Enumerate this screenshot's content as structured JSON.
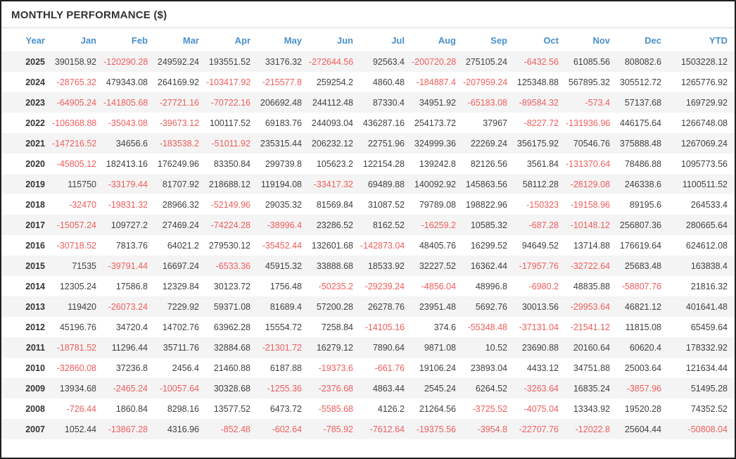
{
  "title": "MONTHLY PERFORMANCE ($)",
  "colors": {
    "header_text": "#4a90ca",
    "negative_value": "#f05c5c",
    "positive_value": "#3f3f3f",
    "row_stripe": "#f4f4f4",
    "panel_border": "#1f1f1f"
  },
  "chart_data": {
    "type": "table",
    "columns": [
      "Year",
      "Jan",
      "Feb",
      "Mar",
      "Apr",
      "May",
      "Jun",
      "Jul",
      "Aug",
      "Sep",
      "Oct",
      "Nov",
      "Dec",
      "YTD"
    ],
    "rows": [
      {
        "year": "2025",
        "values": [
          "390158.92",
          "-120290.28",
          "249592.24",
          "193551.52",
          "33176.32",
          "-272644.56",
          "92563.4",
          "-200720.28",
          "275105.24",
          "-6432.56",
          "61085.56",
          "808082.6",
          "1503228.12"
        ]
      },
      {
        "year": "2024",
        "values": [
          "-28765.32",
          "479343.08",
          "264169.92",
          "-103417.92",
          "-215577.8",
          "259254.2",
          "4860.48",
          "-184887.4",
          "-207959.24",
          "125348.88",
          "567895.32",
          "305512.72",
          "1265776.92"
        ]
      },
      {
        "year": "2023",
        "values": [
          "-64905.24",
          "-141805.68",
          "-27721.16",
          "-70722.16",
          "206692.48",
          "244112.48",
          "87330.4",
          "34951.92",
          "-65183.08",
          "-89584.32",
          "-573.4",
          "57137.68",
          "169729.92"
        ]
      },
      {
        "year": "2022",
        "values": [
          "-106368.88",
          "-35043.08",
          "-39673.12",
          "100117.52",
          "69183.76",
          "244093.04",
          "436287.16",
          "254173.72",
          "37967",
          "-8227.72",
          "-131936.96",
          "446175.64",
          "1266748.08"
        ]
      },
      {
        "year": "2021",
        "values": [
          "-147216.52",
          "34656.6",
          "-183538.2",
          "-51011.92",
          "235315.44",
          "206232.12",
          "22751.96",
          "324999.36",
          "22269.24",
          "356175.92",
          "70546.76",
          "375888.48",
          "1267069.24"
        ]
      },
      {
        "year": "2020",
        "values": [
          "-45805.12",
          "182413.16",
          "176249.96",
          "83350.84",
          "299739.8",
          "105623.2",
          "122154.28",
          "139242.8",
          "82126.56",
          "3561.84",
          "-131370.64",
          "78486.88",
          "1095773.56"
        ]
      },
      {
        "year": "2019",
        "values": [
          "115750",
          "-33179.44",
          "81707.92",
          "218688.12",
          "119194.08",
          "-33417.32",
          "69489.88",
          "140092.92",
          "145863.56",
          "58112.28",
          "-28129.08",
          "246338.6",
          "1100511.52"
        ]
      },
      {
        "year": "2018",
        "values": [
          "-32470",
          "-19831.32",
          "28966.32",
          "-52149.96",
          "29035.32",
          "81569.84",
          "31087.52",
          "79789.08",
          "198822.96",
          "-150323",
          "-19158.96",
          "89195.6",
          "264533.4"
        ]
      },
      {
        "year": "2017",
        "values": [
          "-15057.24",
          "109727.2",
          "27469.24",
          "-74224.28",
          "-38996.4",
          "23286.52",
          "8162.52",
          "-16259.2",
          "10585.32",
          "-687.28",
          "-10148.12",
          "256807.36",
          "280665.64"
        ]
      },
      {
        "year": "2016",
        "values": [
          "-30718.52",
          "7813.76",
          "64021.2",
          "279530.12",
          "-35452.44",
          "132601.68",
          "-142873.04",
          "48405.76",
          "16299.52",
          "94649.52",
          "13714.88",
          "176619.64",
          "624612.08"
        ]
      },
      {
        "year": "2015",
        "values": [
          "71535",
          "-39791.44",
          "16697.24",
          "-6533.36",
          "45915.32",
          "33888.68",
          "18533.92",
          "32227.52",
          "16362.44",
          "-17957.76",
          "-32722.64",
          "25683.48",
          "163838.4"
        ]
      },
      {
        "year": "2014",
        "values": [
          "12305.24",
          "17586.8",
          "12329.84",
          "30123.72",
          "1756.48",
          "-50235.2",
          "-29239.24",
          "-4856.04",
          "48996.8",
          "-6980.2",
          "48835.88",
          "-58807.76",
          "21816.32"
        ]
      },
      {
        "year": "2013",
        "values": [
          "119420",
          "-26073.24",
          "7229.92",
          "59371.08",
          "81689.4",
          "57200.28",
          "26278.76",
          "23951.48",
          "5692.76",
          "30013.56",
          "-29953.64",
          "46821.12",
          "401641.48"
        ]
      },
      {
        "year": "2012",
        "values": [
          "45196.76",
          "34720.4",
          "14702.76",
          "63962.28",
          "15554.72",
          "7258.84",
          "-14105.16",
          "374.6",
          "-55348.48",
          "-37131.04",
          "-21541.12",
          "11815.08",
          "65459.64"
        ]
      },
      {
        "year": "2011",
        "values": [
          "-18781.52",
          "11296.44",
          "35711.76",
          "32884.68",
          "-21301.72",
          "16279.12",
          "7890.64",
          "9871.08",
          "10.52",
          "23690.88",
          "20160.64",
          "60620.4",
          "178332.92"
        ]
      },
      {
        "year": "2010",
        "values": [
          "-32860.08",
          "37236.8",
          "2456.4",
          "21460.88",
          "6187.88",
          "-19373.6",
          "-661.76",
          "19106.24",
          "23893.04",
          "4433.12",
          "34751.88",
          "25003.64",
          "121634.44"
        ]
      },
      {
        "year": "2009",
        "values": [
          "13934.68",
          "-2465.24",
          "-10057.64",
          "30328.68",
          "-1255.36",
          "-2376.68",
          "4863.44",
          "2545.24",
          "6264.52",
          "-3263.64",
          "16835.24",
          "-3857.96",
          "51495.28"
        ]
      },
      {
        "year": "2008",
        "values": [
          "-726.44",
          "1860.84",
          "8298.16",
          "13577.52",
          "6473.72",
          "-5585.68",
          "4126.2",
          "21264.56",
          "-3725.52",
          "-4075.04",
          "13343.92",
          "19520.28",
          "74352.52"
        ]
      },
      {
        "year": "2007",
        "values": [
          "1052.44",
          "-13867.28",
          "4316.96",
          "-852.48",
          "-602.64",
          "-785.92",
          "-7612.64",
          "-19375.56",
          "-3954.8",
          "-22707.76",
          "-12022.8",
          "25604.44",
          "-50808.04"
        ]
      }
    ]
  }
}
